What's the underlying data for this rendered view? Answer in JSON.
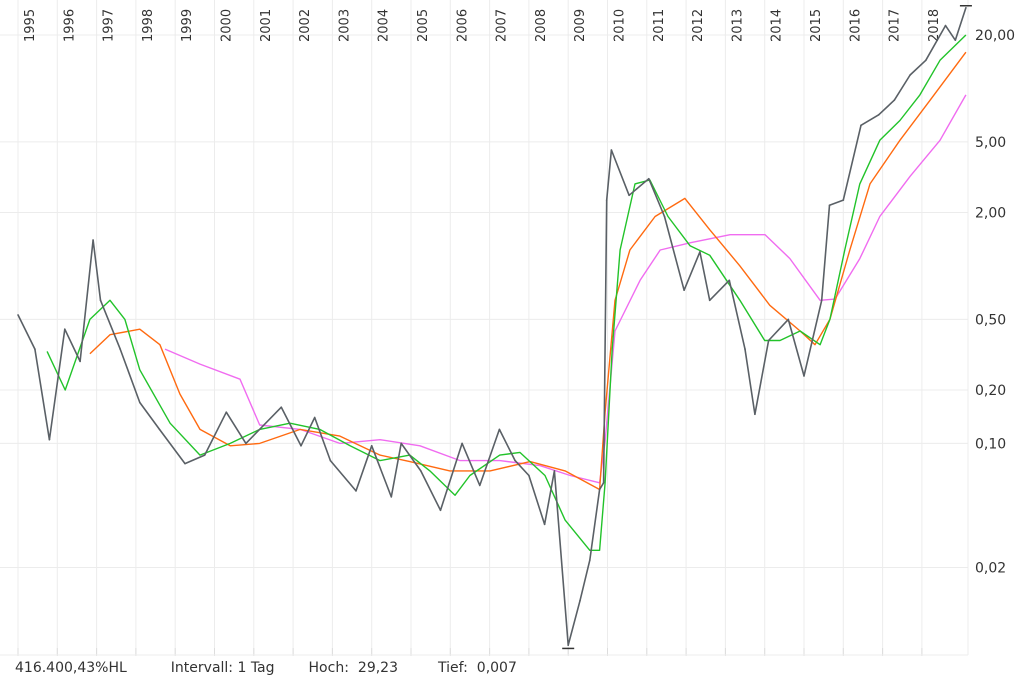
{
  "chart_data": {
    "type": "line",
    "yscale": "log",
    "grid": true,
    "ylim": [
      0.0065,
      30
    ],
    "xlim": [
      1995,
      2019.15
    ],
    "x_tick_labels": [
      "1995",
      "1996",
      "1997",
      "1998",
      "1999",
      "2000",
      "2001",
      "2002",
      "2003",
      "2004",
      "2005",
      "2006",
      "2007",
      "2008",
      "2009",
      "2010",
      "2011",
      "2012",
      "2013",
      "2014",
      "2015",
      "2016",
      "2017",
      "2018"
    ],
    "y_tick_labels": [
      {
        "value": 20,
        "label": "20,00"
      },
      {
        "value": 5,
        "label": "5,00"
      },
      {
        "value": 2,
        "label": "2,00"
      },
      {
        "value": 0.5,
        "label": "0,50"
      },
      {
        "value": 0.2,
        "label": "0,20"
      },
      {
        "value": 0.1,
        "label": "0,10"
      },
      {
        "value": 0.02,
        "label": "0,02"
      }
    ],
    "colors": {
      "price": "#5a6066",
      "ma_green": "#22c32a",
      "ma_orange": "#ff6a10",
      "ma_magenta": "#f06cf0",
      "grid": "#ececec"
    },
    "series": [
      {
        "key": "price",
        "x": [
          1995.0,
          1995.43,
          1995.8,
          1996.19,
          1996.58,
          1996.91,
          1997.1,
          1997.6,
          1998.1,
          1998.6,
          1999.25,
          1999.75,
          2000.3,
          2000.8,
          2001.7,
          2002.2,
          2002.55,
          2002.95,
          2003.6,
          2004.0,
          2004.5,
          2004.75,
          2005.25,
          2005.75,
          2006.3,
          2006.75,
          2007.25,
          2007.65,
          2008.0,
          2008.4,
          2008.65,
          2009.0,
          2009.3,
          2009.55,
          2009.8,
          2009.9,
          2009.98,
          2010.1,
          2010.55,
          2011.05,
          2011.45,
          2011.95,
          2012.35,
          2012.6,
          2013.1,
          2013.5,
          2013.75,
          2014.1,
          2014.6,
          2015.0,
          2015.45,
          2015.65,
          2016.0,
          2016.45,
          2016.9,
          2017.3,
          2017.7,
          2018.1,
          2018.6,
          2018.85,
          2019.12
        ],
        "y": [
          0.53,
          0.34,
          0.105,
          0.44,
          0.29,
          1.4,
          0.64,
          0.34,
          0.17,
          0.12,
          0.077,
          0.086,
          0.15,
          0.1,
          0.16,
          0.097,
          0.14,
          0.08,
          0.054,
          0.097,
          0.05,
          0.1,
          0.07,
          0.042,
          0.1,
          0.058,
          0.12,
          0.08,
          0.066,
          0.035,
          0.07,
          0.0073,
          0.013,
          0.022,
          0.055,
          0.06,
          2.35,
          4.5,
          2.5,
          3.1,
          1.9,
          0.73,
          1.2,
          0.64,
          0.83,
          0.34,
          0.146,
          0.38,
          0.5,
          0.24,
          0.64,
          2.2,
          2.35,
          6.2,
          7.1,
          8.6,
          11.9,
          14.4,
          22.6,
          18.7,
          28.5
        ]
      },
      {
        "key": "ma_green",
        "x": [
          1995.74,
          1996.2,
          1996.83,
          1997.34,
          1997.72,
          1998.1,
          1998.87,
          1999.63,
          2000.4,
          2001.15,
          2001.92,
          2002.68,
          2003.45,
          2004.21,
          2004.97,
          2005.48,
          2006.12,
          2006.5,
          2007.26,
          2007.77,
          2008.41,
          2008.92,
          2009.55,
          2009.8,
          2009.94,
          2010.12,
          2010.32,
          2010.7,
          2011.08,
          2011.54,
          2012.1,
          2012.6,
          2013.37,
          2014.0,
          2014.39,
          2014.9,
          2015.41,
          2015.66,
          2016.04,
          2016.42,
          2016.93,
          2017.44,
          2017.95,
          2018.46,
          2019.12
        ],
        "y": [
          0.33,
          0.2,
          0.5,
          0.64,
          0.5,
          0.26,
          0.13,
          0.086,
          0.1,
          0.12,
          0.13,
          0.12,
          0.097,
          0.08,
          0.086,
          0.07,
          0.051,
          0.066,
          0.086,
          0.089,
          0.066,
          0.037,
          0.025,
          0.025,
          0.06,
          0.34,
          1.23,
          2.9,
          3.05,
          1.9,
          1.3,
          1.15,
          0.64,
          0.38,
          0.38,
          0.43,
          0.36,
          0.5,
          1.24,
          2.9,
          5.1,
          6.6,
          9.2,
          14.4,
          20
        ]
      },
      {
        "key": "ma_orange",
        "x": [
          1996.83,
          1997.34,
          1998.1,
          1998.61,
          1999.12,
          1999.63,
          2000.4,
          2001.15,
          2002.18,
          2003.19,
          2004.21,
          2004.97,
          2005.99,
          2007.01,
          2008.03,
          2008.92,
          2009.8,
          2009.94,
          2010.19,
          2010.57,
          2011.21,
          2011.97,
          2012.6,
          2013.37,
          2014.13,
          2014.9,
          2015.28,
          2015.66,
          2016.17,
          2016.68,
          2017.44,
          2018.21,
          2019.12
        ],
        "y": [
          0.32,
          0.41,
          0.44,
          0.36,
          0.19,
          0.12,
          0.097,
          0.1,
          0.12,
          0.11,
          0.086,
          0.079,
          0.07,
          0.07,
          0.079,
          0.07,
          0.055,
          0.15,
          0.64,
          1.23,
          1.9,
          2.4,
          1.6,
          1.0,
          0.6,
          0.43,
          0.36,
          0.5,
          1.24,
          2.9,
          5.1,
          8.6,
          16
        ]
      },
      {
        "key": "ma_magenta",
        "x": [
          1998.74,
          1999.63,
          2000.65,
          2001.15,
          2002.18,
          2003.19,
          2004.21,
          2005.23,
          2006.25,
          2007.26,
          2008.28,
          2009.05,
          2009.8,
          2009.94,
          2010.19,
          2010.83,
          2011.34,
          2012.1,
          2013.12,
          2014.01,
          2014.64,
          2015.41,
          2015.79,
          2016.42,
          2016.93,
          2017.7,
          2018.46,
          2019.12
        ],
        "y": [
          0.34,
          0.28,
          0.23,
          0.127,
          0.12,
          0.1,
          0.105,
          0.097,
          0.08,
          0.08,
          0.075,
          0.066,
          0.06,
          0.103,
          0.43,
          0.83,
          1.23,
          1.35,
          1.5,
          1.5,
          1.1,
          0.64,
          0.65,
          1.1,
          1.9,
          3.2,
          5.1,
          9.2
        ]
      }
    ],
    "high_marker": 29.23,
    "low_marker": 0.007
  },
  "footer": {
    "range": "416.400,43%HL",
    "interval": "Intervall: 1 Tag",
    "high_label": "Hoch:",
    "high_value": "29,23",
    "low_label": "Tief:",
    "low_value": "0,007"
  }
}
